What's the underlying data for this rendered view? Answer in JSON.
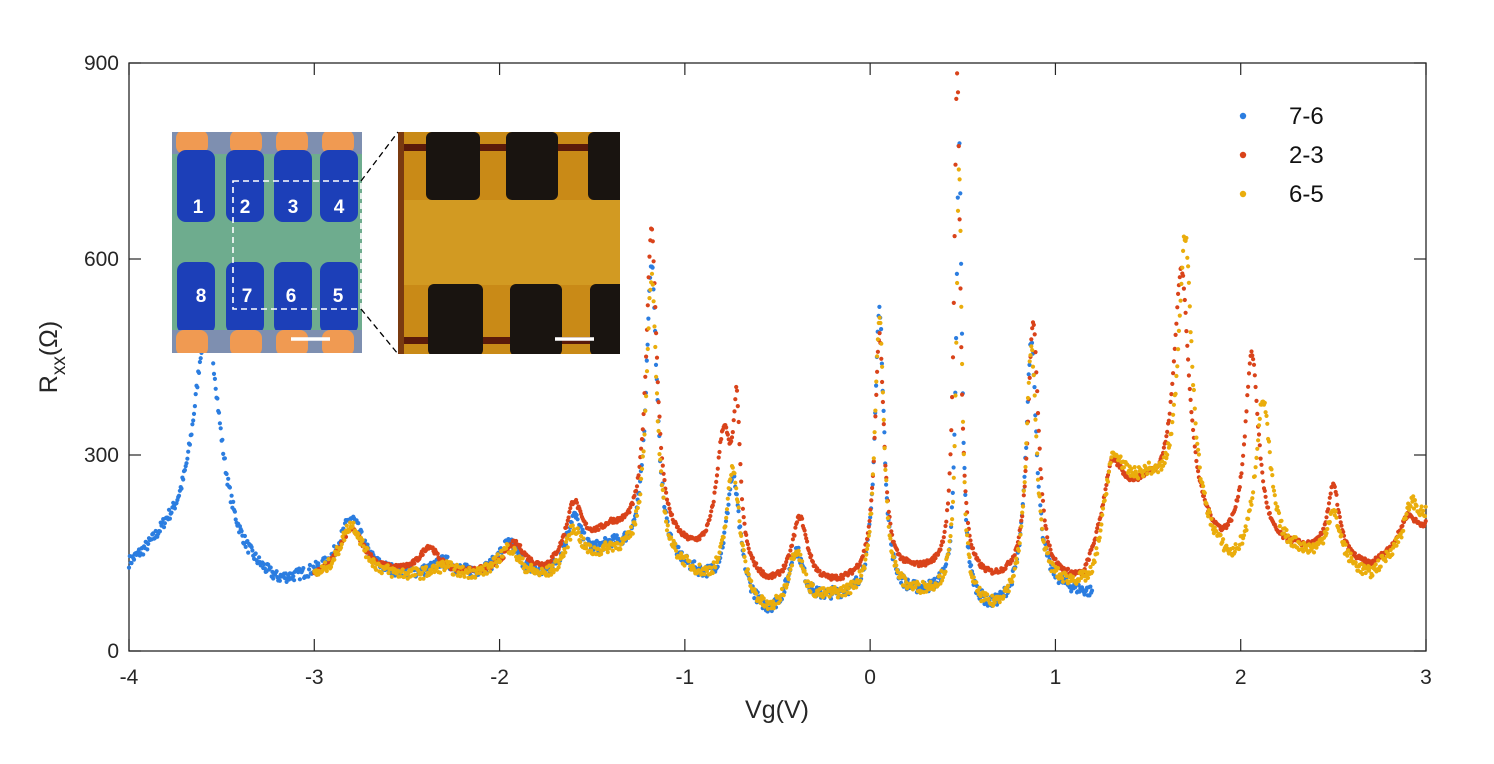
{
  "chart_data": {
    "type": "scatter",
    "title": "",
    "xlabel": "Vg(V)",
    "ylabel_main": "R",
    "ylabel_sub": "xx",
    "ylabel_unit": "(Ω)",
    "xlim": [
      -4,
      3
    ],
    "ylim": [
      0,
      900
    ],
    "xticks": [
      -4,
      -3,
      -2,
      -1,
      0,
      1,
      2,
      3
    ],
    "xtick_labels": [
      "-4",
      "-3",
      "-2",
      "-1",
      "0",
      "1",
      "2",
      "3"
    ],
    "yticks": [
      0,
      300,
      600,
      900
    ],
    "ytick_labels": [
      "0",
      "300",
      "600",
      "900"
    ],
    "grid": false,
    "legend_position": "top-right",
    "series": [
      {
        "name": "7-6",
        "color": "#2b7de0",
        "x_range": [
          -4.0,
          1.2
        ],
        "peaks": [
          {
            "x": -3.58,
            "y": 365,
            "w": 0.09
          },
          {
            "x": -2.8,
            "y": 90,
            "w": 0.08
          },
          {
            "x": -2.3,
            "y": 20,
            "w": 0.07
          },
          {
            "x": -1.95,
            "y": 50,
            "w": 0.07
          },
          {
            "x": -1.6,
            "y": 75,
            "w": 0.05
          },
          {
            "x": -1.18,
            "y": 460,
            "w": 0.035
          },
          {
            "x": -0.74,
            "y": 185,
            "w": 0.045
          },
          {
            "x": -0.4,
            "y": 90,
            "w": 0.05
          },
          {
            "x": 0.05,
            "y": 440,
            "w": 0.03
          },
          {
            "x": 0.48,
            "y": 700,
            "w": 0.018
          },
          {
            "x": 0.87,
            "y": 395,
            "w": 0.035
          }
        ],
        "baseline": [
          [
            -4.0,
            120
          ],
          [
            -3.8,
            150
          ],
          [
            -3.2,
            90
          ],
          [
            -3.0,
            105
          ],
          [
            -2.5,
            110
          ],
          [
            -2.0,
            110
          ],
          [
            -1.75,
            105
          ],
          [
            -1.4,
            150
          ],
          [
            -1.0,
            115
          ],
          [
            -0.55,
            45
          ],
          [
            -0.2,
            75
          ],
          [
            0.2,
            80
          ],
          [
            0.4,
            85
          ],
          [
            0.65,
            55
          ],
          [
            1.0,
            90
          ],
          [
            1.2,
            85
          ]
        ]
      },
      {
        "name": "2-3",
        "color": "#d9431a",
        "x_range": [
          -3.0,
          3.0
        ],
        "peaks": [
          {
            "x": -2.8,
            "y": 75,
            "w": 0.09
          },
          {
            "x": -2.38,
            "y": 40,
            "w": 0.06
          },
          {
            "x": -1.92,
            "y": 45,
            "w": 0.07
          },
          {
            "x": -1.6,
            "y": 80,
            "w": 0.05
          },
          {
            "x": -1.18,
            "y": 480,
            "w": 0.035
          },
          {
            "x": -0.79,
            "y": 200,
            "w": 0.05
          },
          {
            "x": -0.72,
            "y": 215,
            "w": 0.022
          },
          {
            "x": -0.38,
            "y": 105,
            "w": 0.05
          },
          {
            "x": 0.05,
            "y": 370,
            "w": 0.03
          },
          {
            "x": 0.47,
            "y": 770,
            "w": 0.02
          },
          {
            "x": 0.88,
            "y": 400,
            "w": 0.035
          },
          {
            "x": 1.3,
            "y": 80,
            "w": 0.05
          },
          {
            "x": 1.68,
            "y": 380,
            "w": 0.05
          },
          {
            "x": 2.06,
            "y": 300,
            "w": 0.045
          },
          {
            "x": 2.5,
            "y": 110,
            "w": 0.04
          },
          {
            "x": 2.9,
            "y": 40,
            "w": 0.05
          }
        ],
        "baseline": [
          [
            -3.0,
            105
          ],
          [
            -2.5,
            115
          ],
          [
            -2.0,
            115
          ],
          [
            -1.75,
            115
          ],
          [
            -1.4,
            180
          ],
          [
            -1.05,
            150
          ],
          [
            -0.55,
            90
          ],
          [
            -0.2,
            95
          ],
          [
            0.2,
            115
          ],
          [
            0.4,
            115
          ],
          [
            0.65,
            100
          ],
          [
            1.0,
            100
          ],
          [
            1.15,
            100
          ],
          [
            1.35,
            230
          ],
          [
            1.5,
            240
          ],
          [
            1.9,
            145
          ],
          [
            2.3,
            150
          ],
          [
            2.7,
            125
          ],
          [
            3.0,
            185
          ]
        ]
      },
      {
        "name": "6-5",
        "color": "#eaad0c",
        "x_range": [
          -3.0,
          3.0
        ],
        "peaks": [
          {
            "x": -2.8,
            "y": 85,
            "w": 0.08
          },
          {
            "x": -2.3,
            "y": 15,
            "w": 0.07
          },
          {
            "x": -1.95,
            "y": 45,
            "w": 0.07
          },
          {
            "x": -1.6,
            "y": 60,
            "w": 0.05
          },
          {
            "x": -1.18,
            "y": 440,
            "w": 0.035
          },
          {
            "x": -0.74,
            "y": 200,
            "w": 0.045
          },
          {
            "x": -0.4,
            "y": 90,
            "w": 0.05
          },
          {
            "x": 0.05,
            "y": 430,
            "w": 0.03
          },
          {
            "x": 0.48,
            "y": 650,
            "w": 0.018
          },
          {
            "x": 0.87,
            "y": 380,
            "w": 0.035
          },
          {
            "x": 1.3,
            "y": 90,
            "w": 0.05
          },
          {
            "x": 1.7,
            "y": 440,
            "w": 0.045
          },
          {
            "x": 2.12,
            "y": 250,
            "w": 0.05
          },
          {
            "x": 2.5,
            "y": 80,
            "w": 0.05
          },
          {
            "x": 2.92,
            "y": 50,
            "w": 0.04
          }
        ],
        "baseline": [
          [
            -3.0,
            105
          ],
          [
            -2.5,
            110
          ],
          [
            -2.0,
            110
          ],
          [
            -1.75,
            105
          ],
          [
            -1.4,
            145
          ],
          [
            -1.0,
            115
          ],
          [
            -0.55,
            45
          ],
          [
            -0.2,
            75
          ],
          [
            0.2,
            80
          ],
          [
            0.4,
            85
          ],
          [
            0.65,
            55
          ],
          [
            1.0,
            90
          ],
          [
            1.2,
            95
          ],
          [
            1.35,
            240
          ],
          [
            1.5,
            250
          ],
          [
            1.95,
            115
          ],
          [
            2.3,
            140
          ],
          [
            2.7,
            110
          ],
          [
            3.0,
            200
          ]
        ]
      }
    ]
  },
  "inset_left": {
    "pad_labels": [
      "1",
      "2",
      "3",
      "4",
      "8",
      "7",
      "6",
      "5"
    ]
  },
  "inset_right": {},
  "colors": {
    "axis": "#262626",
    "inset_left_bg": "#6eac8e",
    "inset_left_contact": "#1c3fb8",
    "inset_left_pad": "#f09a52",
    "inset_right_bg": "#c98a17",
    "inset_right_contact": "#191410",
    "inset_right_frame": "#5a1a0a"
  }
}
